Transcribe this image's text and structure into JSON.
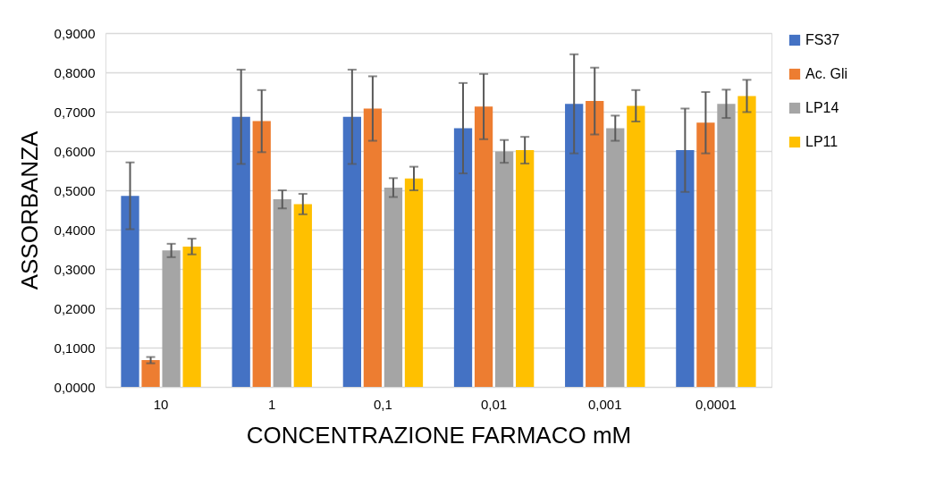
{
  "chart_data": {
    "type": "bar",
    "xlabel": "CONCENTRAZIONE FARMACO mM",
    "ylabel": "ASSORBANZA",
    "categories": [
      "10",
      "1",
      "0,1",
      "0,01",
      "0,001",
      "0,0001"
    ],
    "series": [
      {
        "name": "FS37",
        "color": "#4472c4",
        "values": [
          0.486,
          0.687,
          0.687,
          0.658,
          0.72,
          0.602
        ],
        "errors": [
          0.085,
          0.12,
          0.12,
          0.115,
          0.126,
          0.106
        ]
      },
      {
        "name": "Ac. Gli",
        "color": "#ed7d31",
        "values": [
          0.068,
          0.676,
          0.708,
          0.713,
          0.727,
          0.672
        ],
        "errors": [
          0.008,
          0.079,
          0.082,
          0.083,
          0.085,
          0.078
        ]
      },
      {
        "name": "LP14",
        "color": "#a5a5a5",
        "values": [
          0.347,
          0.477,
          0.507,
          0.599,
          0.658,
          0.72
        ],
        "errors": [
          0.017,
          0.023,
          0.024,
          0.029,
          0.032,
          0.036
        ]
      },
      {
        "name": "LP11",
        "color": "#ffc000",
        "values": [
          0.357,
          0.465,
          0.53,
          0.602,
          0.715,
          0.74
        ],
        "errors": [
          0.02,
          0.026,
          0.03,
          0.034,
          0.04,
          0.041
        ]
      }
    ],
    "ylim": [
      0,
      0.9
    ],
    "yticks": [
      {
        "value": 0,
        "label": "0,0000"
      },
      {
        "value": 0.1,
        "label": "0,1000"
      },
      {
        "value": 0.2,
        "label": "0,2000"
      },
      {
        "value": 0.3,
        "label": "0,3000"
      },
      {
        "value": 0.4,
        "label": "0,4000"
      },
      {
        "value": 0.5,
        "label": "0,5000"
      },
      {
        "value": 0.6,
        "label": "0,6000"
      },
      {
        "value": 0.7,
        "label": "0,7000"
      },
      {
        "value": 0.8,
        "label": "0,8000"
      },
      {
        "value": 0.9,
        "label": "0,9000"
      }
    ],
    "grid": "y",
    "legend": "right"
  }
}
